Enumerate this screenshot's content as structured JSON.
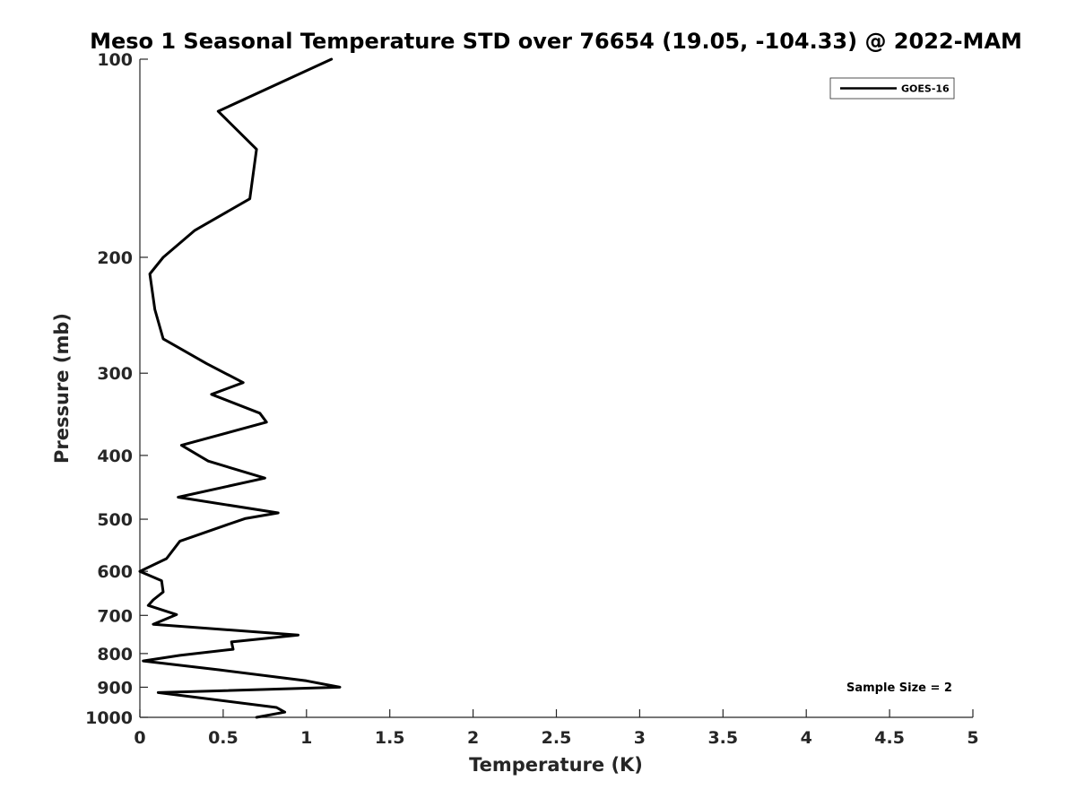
{
  "chart_data": {
    "type": "line",
    "title": "Meso 1 Seasonal Temperature STD over 76654 (19.05, -104.33) @ 2022-MAM",
    "xlabel": "Temperature (K)",
    "ylabel": "Pressure (mb)",
    "xlim": [
      0,
      5
    ],
    "ylim": [
      100,
      1000
    ],
    "yscale": "log",
    "y_reversed": true,
    "xticks": [
      "0",
      "0.5",
      "1",
      "1.5",
      "2",
      "2.5",
      "3",
      "3.5",
      "4",
      "4.5",
      "5"
    ],
    "yticks": [
      "100",
      "200",
      "300",
      "400",
      "500",
      "600",
      "700",
      "800",
      "900",
      "1000"
    ],
    "legend": {
      "entries": [
        "GOES-16"
      ],
      "location": "top-right"
    },
    "annotation": "Sample Size = 2",
    "series": [
      {
        "name": "GOES-16",
        "color": "#000000",
        "x": [
          1.15,
          0.47,
          0.7,
          0.66,
          0.33,
          0.14,
          0.06,
          0.09,
          0.14,
          0.4,
          0.62,
          0.43,
          0.72,
          0.76,
          0.25,
          0.41,
          0.75,
          0.23,
          0.83,
          0.63,
          0.52,
          0.24,
          0.16,
          0.0,
          0.13,
          0.14,
          0.08,
          0.05,
          0.22,
          0.08,
          0.95,
          0.55,
          0.56,
          0.24,
          0.02,
          0.48,
          1.0,
          1.2,
          0.11,
          0.82,
          0.87,
          0.7
        ],
        "y": [
          100,
          120,
          137,
          163,
          182,
          200,
          212,
          240,
          266,
          290,
          310,
          323,
          345,
          356,
          386,
          408,
          433,
          463,
          489,
          499,
          510,
          540,
          574,
          600,
          620,
          645,
          663,
          676,
          698,
          722,
          750,
          768,
          788,
          805,
          821,
          847,
          880,
          900,
          917,
          966,
          982,
          1000
        ]
      }
    ]
  }
}
